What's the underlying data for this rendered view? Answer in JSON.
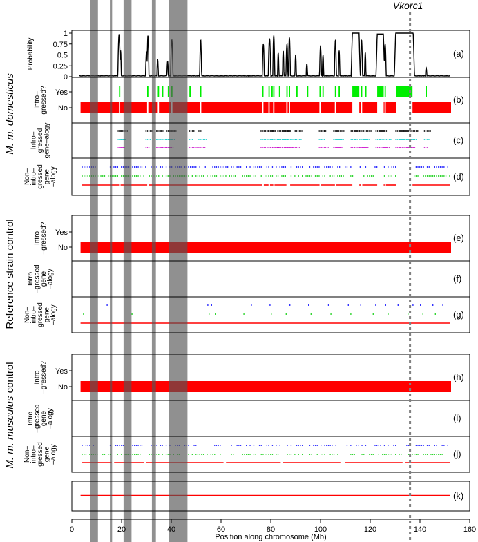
{
  "chart_data": {
    "type": "multi-panel genomic track",
    "xlabel": "Position along chromosome (Mb)",
    "xlim": [
      0,
      160
    ],
    "x_ticks": [
      0,
      20,
      40,
      60,
      80,
      100,
      120,
      140,
      160
    ],
    "marker": {
      "label": "Vkorc1",
      "x": 136
    },
    "shaded_regions": [
      {
        "start": 7.5,
        "end": 10.5
      },
      {
        "start": 15.3,
        "end": 16.2
      },
      {
        "start": 20.8,
        "end": 24.0
      },
      {
        "start": 32.2,
        "end": 33.8
      },
      {
        "start": 39.0,
        "end": 46.5
      }
    ],
    "groups": [
      {
        "label_prefix": "M. m. domesticus",
        "label_suffix": ""
      },
      {
        "label_prefix": "",
        "label_suffix": "Reference strain control"
      },
      {
        "label_prefix": "M. m. musculus",
        "label_suffix": " control"
      }
    ],
    "panels": {
      "a": {
        "tag": "(a)",
        "ylabel": "Probability",
        "y_ticks": [
          "0",
          "0.25",
          "0.5",
          "0.75",
          "1"
        ],
        "ylim": [
          0,
          1
        ],
        "peaks": [
          {
            "x": 19,
            "y": 0.98,
            "w": 0.5
          },
          {
            "x": 19.6,
            "y": 0.6,
            "w": 0.3
          },
          {
            "x": 30,
            "y": 0.55,
            "w": 0.4
          },
          {
            "x": 30.6,
            "y": 0.95,
            "w": 0.4
          },
          {
            "x": 34.5,
            "y": 0.4,
            "w": 0.3
          },
          {
            "x": 38.5,
            "y": 0.35,
            "w": 0.3
          },
          {
            "x": 40.2,
            "y": 0.85,
            "w": 0.5
          },
          {
            "x": 51.8,
            "y": 0.85,
            "w": 0.4
          },
          {
            "x": 77,
            "y": 0.75,
            "w": 0.4
          },
          {
            "x": 79.5,
            "y": 0.88,
            "w": 0.5
          },
          {
            "x": 81.2,
            "y": 0.95,
            "w": 0.4
          },
          {
            "x": 83,
            "y": 0.55,
            "w": 0.3
          },
          {
            "x": 85,
            "y": 0.6,
            "w": 0.3
          },
          {
            "x": 86.5,
            "y": 0.75,
            "w": 0.4
          },
          {
            "x": 87.5,
            "y": 0.9,
            "w": 0.4
          },
          {
            "x": 90,
            "y": 0.5,
            "w": 0.3
          },
          {
            "x": 94.5,
            "y": 0.3,
            "w": 0.3
          },
          {
            "x": 100,
            "y": 0.7,
            "w": 0.4
          },
          {
            "x": 101,
            "y": 0.5,
            "w": 0.3
          },
          {
            "x": 106,
            "y": 0.85,
            "w": 0.4
          },
          {
            "x": 107.5,
            "y": 0.6,
            "w": 0.3
          },
          {
            "x": 116.5,
            "y": 0.85,
            "w": 0.4
          },
          {
            "x": 118,
            "y": 0.55,
            "w": 0.3
          },
          {
            "x": 126,
            "y": 0.75,
            "w": 0.4
          },
          {
            "x": 142.5,
            "y": 0.2,
            "w": 0.3
          }
        ],
        "plateaus": [
          {
            "start": 112.8,
            "end": 115.5,
            "y": 1
          },
          {
            "start": 122.8,
            "end": 125.3,
            "y": 0.98
          },
          {
            "start": 130.2,
            "end": 137.3,
            "y": 1
          }
        ]
      },
      "b": {
        "tag": "(b)",
        "ylabel": [
          "Intro–",
          "gressed?"
        ],
        "y_ticks": [
          "Yes",
          "No"
        ],
        "yes_ticks": [
          19.2,
          30.5,
          34.8,
          36.5,
          38.8,
          40.2,
          47.5,
          51.8,
          76.8,
          79.3,
          80.5,
          81.2,
          83.5,
          86.5,
          87.5,
          90.5,
          94.8,
          99.8,
          101,
          106,
          107.5,
          116.5,
          118.2,
          126,
          142.5
        ],
        "yes_blocks": [
          [
            112.8,
            115.6
          ],
          [
            122.8,
            125.4
          ],
          [
            130.5,
            137.0
          ]
        ],
        "no_gaps": [
          19.2,
          30.5,
          34.8,
          40.2,
          51.8,
          76.8,
          79.3,
          81.2,
          86.5,
          87.5,
          99.8,
          106,
          116.5,
          126,
          [
            112.8,
            115.6
          ],
          [
            122.8,
            125.4
          ],
          [
            130.5,
            137.0
          ]
        ]
      },
      "c": {
        "tag": "(c)",
        "ylabel": [
          "Intro–",
          "gressed",
          "gene–alogy"
        ],
        "row_colors": [
          "#000000",
          "#00c8c8",
          "#c800c8"
        ],
        "clusters": [
          19,
          20,
          30.5,
          34.8,
          36.5,
          38.8,
          40.2,
          48,
          51.8,
          76.8,
          79.3,
          80.8,
          81.5,
          83.5,
          85.5,
          86.5,
          87.5,
          90.5,
          99.8,
          101,
          106,
          107.5,
          113,
          114.5,
          116.5,
          118,
          123,
          124.5,
          126,
          131,
          132.5,
          134,
          135.5,
          136.8,
          142.5
        ]
      },
      "d": {
        "tag": "(d)",
        "ylabel": [
          "Non–",
          "intro–",
          "gressed",
          "gene",
          "–alogy"
        ],
        "row_colors": [
          "#0000ff",
          "#00cc00",
          "#ff0000"
        ],
        "coverage": [
          [
            4,
            152
          ]
        ],
        "gaps": [
          [
            112.8,
            115.6
          ],
          [
            122.8,
            125.4
          ],
          [
            130.5,
            137.0
          ],
          [
            19.0,
            19.6
          ],
          [
            30.3,
            30.9
          ],
          [
            76.6,
            77.2
          ],
          [
            79.1,
            79.7
          ],
          [
            81.0,
            81.5
          ],
          [
            86.3,
            87.8
          ],
          [
            99.6,
            100.2
          ],
          [
            105.8,
            106.3
          ],
          [
            116.3,
            116.8
          ],
          [
            125.8,
            126.3
          ]
        ]
      },
      "e": {
        "tag": "(e)",
        "ylabel": [
          "Intro",
          "–gressed?"
        ],
        "y_ticks": [
          "Yes",
          "No"
        ],
        "no_bar": [
          3.5,
          152.5
        ]
      },
      "f": {
        "tag": "(f)",
        "ylabel": [
          "Intro",
          "–gressed",
          "gene",
          "–alogy"
        ]
      },
      "g": {
        "tag": "(g)",
        "ylabel": [
          "Non–",
          "intro–",
          "gressed",
          "gene",
          "–alogy"
        ],
        "row_colors": [
          "#0000ff",
          "#00cc00",
          "#ff0000"
        ],
        "sparse_blue": [
          14,
          54.5,
          56,
          72,
          79.5,
          87.5,
          95,
          103,
          111,
          116,
          122,
          126,
          131,
          137,
          140,
          145,
          149
        ],
        "sparse_green": [
          4.5,
          24,
          55,
          57.5,
          69,
          80,
          86,
          96,
          104,
          112,
          121,
          127,
          135,
          141,
          146
        ],
        "red_line": [
          3.5,
          152
        ]
      },
      "h": {
        "tag": "(h)",
        "ylabel": [
          "Intro",
          "–gressed?"
        ],
        "y_ticks": [
          "Yes",
          "No"
        ],
        "no_bar": [
          3.5,
          152.5
        ]
      },
      "i": {
        "tag": "(i)",
        "ylabel": [
          "Intro",
          "–gressed",
          "gene",
          "–alogy"
        ]
      },
      "j": {
        "tag": "(j)",
        "ylabel": [
          "Non–",
          "intro–",
          "gressed",
          "gene",
          "–alogy"
        ],
        "row_colors": [
          "#0000ff",
          "#00cc00",
          "#ff0000"
        ],
        "coverage": [
          [
            4,
            152
          ]
        ],
        "gaps": [
          [
            16,
            17
          ],
          [
            29,
            30
          ],
          [
            61,
            62
          ],
          [
            84,
            85
          ],
          [
            108,
            110
          ],
          [
            133,
            134
          ]
        ]
      },
      "k": {
        "tag": "(k)",
        "red_line": [
          3.5,
          152
        ]
      }
    }
  }
}
